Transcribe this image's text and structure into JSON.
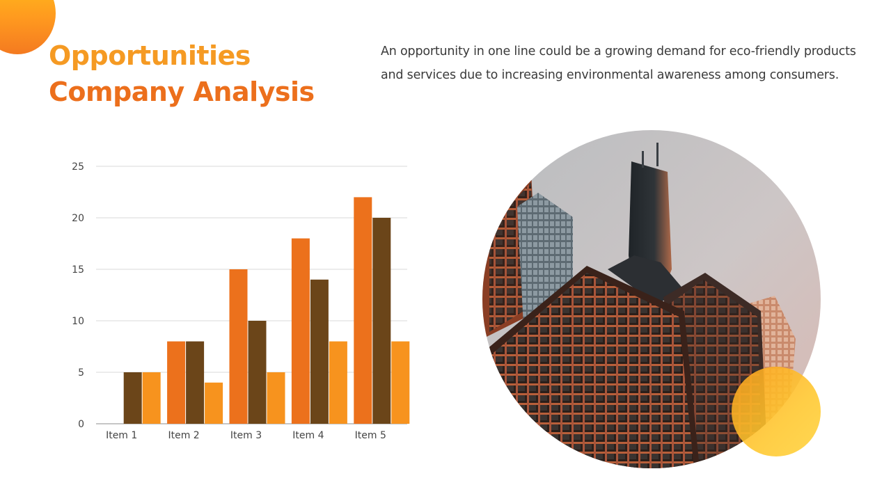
{
  "slide": {
    "title_line1": "Opportunities",
    "title_line2": "Company Analysis",
    "description": "An opportunity in one line could be a growing demand for eco-friendly products and services due to increasing environmental awareness among consumers."
  },
  "colors": {
    "orange": "#ec711c",
    "brown": "#6b4519",
    "light_orange": "#f7931e",
    "accent_yellow": "#ffc21a"
  },
  "chart_data": {
    "type": "bar",
    "categories": [
      "Item 1",
      "Item 2",
      "Item 3",
      "Item 4",
      "Item 5"
    ],
    "series": [
      {
        "values": [
          0,
          8,
          15,
          18,
          22
        ],
        "color": "#ec711c"
      },
      {
        "values": [
          5,
          8,
          10,
          14,
          20
        ],
        "color": "#6b4519"
      },
      {
        "values": [
          5,
          4,
          5,
          8,
          8
        ],
        "color": "#f7931e"
      }
    ],
    "yticks": [
      "0",
      "5",
      "10",
      "15",
      "20",
      "25"
    ],
    "ylim": [
      0,
      25
    ],
    "grid": true,
    "legend": "none"
  }
}
